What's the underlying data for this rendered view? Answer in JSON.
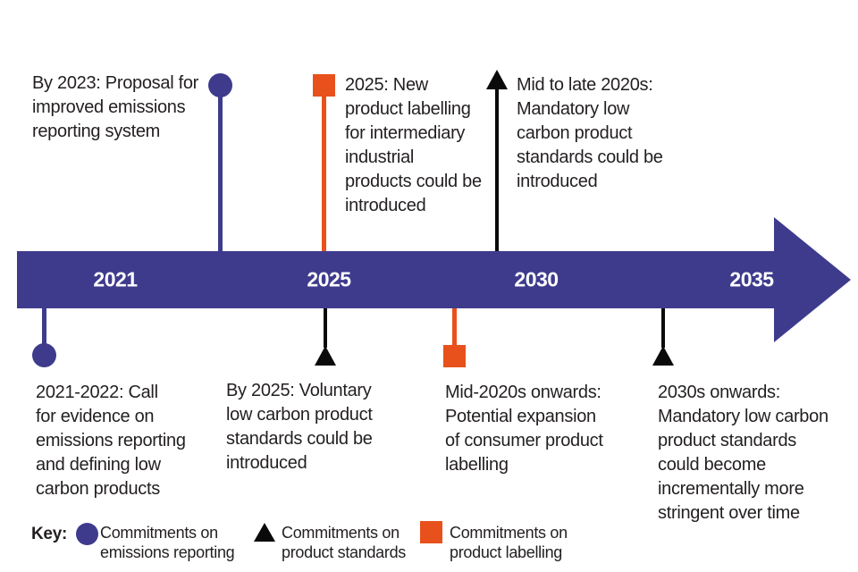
{
  "colors": {
    "purple": "#3E3B8D",
    "orange": "#E8511C",
    "marker_black": "#0a0a0a",
    "text": "#231F20",
    "year_text": "#FFFFFF",
    "background": "#FFFFFF"
  },
  "timeline": {
    "years": [
      "2021",
      "2025",
      "2030",
      "2035"
    ]
  },
  "events": {
    "top": [
      {
        "marker": "circle",
        "category": "Commitments on emissions reporting",
        "text": "By 2023: Proposal for\nimproved emissions\nreporting system"
      },
      {
        "marker": "square",
        "category": "Commitments on product labelling",
        "text": "2025: New\nproduct labelling\nfor intermediary\nindustrial\nproducts could be\nintroduced"
      },
      {
        "marker": "arrow",
        "category": "Commitments on product standards",
        "text": "Mid to late 2020s:\nMandatory low\ncarbon product\nstandards could be\nintroduced"
      }
    ],
    "bottom": [
      {
        "marker": "circle",
        "category": "Commitments on emissions reporting",
        "text": "2021-2022: Call\nfor evidence on\nemissions reporting\nand defining low\ncarbon products"
      },
      {
        "marker": "triangle",
        "category": "Commitments on product standards",
        "text": "By 2025: Voluntary\nlow carbon product\nstandards could be\nintroduced"
      },
      {
        "marker": "square",
        "category": "Commitments on product labelling",
        "text": "Mid-2020s onwards:\nPotential expansion\nof consumer product\nlabelling"
      },
      {
        "marker": "triangle",
        "category": "Commitments on product standards",
        "text": "2030s onwards:\nMandatory low carbon\nproduct standards\ncould become\nincrementally more\nstringent over time"
      }
    ]
  },
  "legend": {
    "title": "Key:",
    "items": [
      {
        "marker": "circle",
        "label": "Commitments on\nemissions reporting"
      },
      {
        "marker": "triangle",
        "label": "Commitments on\nproduct standards"
      },
      {
        "marker": "square",
        "label": "Commitments on\nproduct labelling"
      }
    ]
  }
}
